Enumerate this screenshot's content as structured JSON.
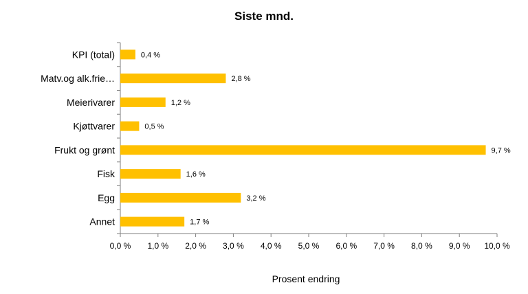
{
  "chart_data": {
    "type": "bar",
    "orientation": "horizontal",
    "title": "Siste mnd.",
    "xlabel": "Prosent endring",
    "ylabel": "",
    "categories": [
      "KPI (total)",
      "Matv.og alk.frie…",
      "Meierivarer",
      "Kjøttvarer",
      "Frukt og grønt",
      "Fisk",
      "Egg",
      "Annet"
    ],
    "values": [
      0.4,
      2.8,
      1.2,
      0.5,
      9.7,
      1.6,
      3.2,
      1.7
    ],
    "value_labels": [
      "0,4 %",
      "2,8 %",
      "1,2 %",
      "0,5 %",
      "9,7 %",
      "1,6 %",
      "3,2 %",
      "1,7 %"
    ],
    "xlim": [
      0,
      10
    ],
    "xticks": [
      0,
      1,
      2,
      3,
      4,
      5,
      6,
      7,
      8,
      9,
      10
    ],
    "xtick_labels": [
      "0,0 %",
      "1,0 %",
      "2,0 %",
      "3,0 %",
      "4,0 %",
      "5,0 %",
      "6,0 %",
      "7,0 %",
      "8,0 %",
      "9,0 %",
      "10,0 %"
    ],
    "grid": false,
    "legend": "none",
    "bar_color": "#FFC000"
  }
}
